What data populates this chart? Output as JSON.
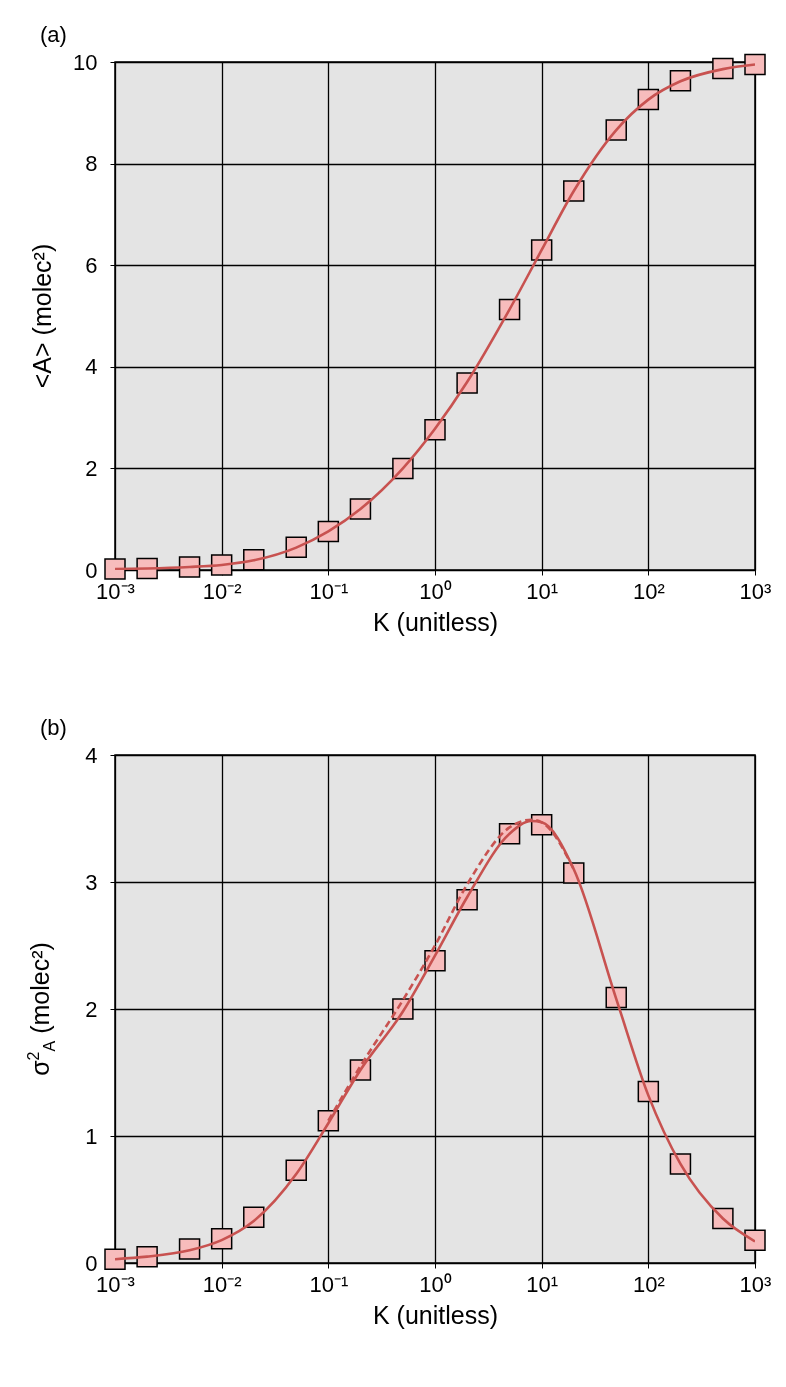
{
  "chart_data": [
    {
      "type": "line",
      "title": "(a)",
      "xlabel": "K (unitless)",
      "ylabel": "<A> (molec²)",
      "log": "x",
      "grid": true,
      "xlim": [
        0.001,
        1000
      ],
      "xticks": [
        {
          "value": 0.001,
          "label": "10⁻³"
        },
        {
          "value": 0.01,
          "label": "10⁻²"
        },
        {
          "value": 0.1,
          "label": "10⁻¹"
        },
        {
          "value": 1,
          "label": "10⁰"
        },
        {
          "value": 10,
          "label": "10¹"
        },
        {
          "value": 100,
          "label": "10²"
        },
        {
          "value": 1000,
          "label": "10³"
        }
      ],
      "ylim": [
        0,
        10
      ],
      "yticks": [
        0,
        2,
        4,
        6,
        8,
        10
      ],
      "series": [
        {
          "type": "line",
          "color": "#c85250",
          "line_style": "solid",
          "x": [
            0.001,
            0.002,
            0.005,
            0.01,
            0.02,
            0.05,
            0.1,
            0.2,
            0.5,
            1,
            2,
            5,
            10,
            20,
            50,
            100,
            200,
            500,
            1000
          ],
          "values": [
            0.02,
            0.03,
            0.06,
            0.1,
            0.19,
            0.44,
            0.76,
            1.2,
            2.0,
            2.78,
            3.7,
            5.13,
            6.3,
            7.46,
            8.66,
            9.26,
            9.62,
            9.86,
            9.95
          ]
        },
        {
          "type": "scatter",
          "marker": "square",
          "color": "#f7bcbc",
          "x": [
            0.001,
            0.002,
            0.005,
            0.01,
            0.02,
            0.05,
            0.1,
            0.2,
            0.5,
            1,
            2,
            5,
            10,
            20,
            50,
            100,
            200,
            500,
            1000
          ],
          "values": [
            0.02,
            0.03,
            0.06,
            0.1,
            0.2,
            0.45,
            0.76,
            1.2,
            2.0,
            2.76,
            3.68,
            5.13,
            6.3,
            7.46,
            8.66,
            9.26,
            9.63,
            9.87,
            9.95
          ]
        }
      ]
    },
    {
      "type": "line",
      "title": "(b)",
      "xlabel": "K (unitless)",
      "ylabel": "σ$^{2}$$_{A}$ (molec²)",
      "log": "x",
      "grid": true,
      "xlim": [
        0.001,
        1000
      ],
      "xticks": [
        {
          "value": 0.001,
          "label": "10⁻³"
        },
        {
          "value": 0.01,
          "label": "10⁻²"
        },
        {
          "value": 0.1,
          "label": "10⁻¹"
        },
        {
          "value": 1,
          "label": "10⁰"
        },
        {
          "value": 10,
          "label": "10¹"
        },
        {
          "value": 100,
          "label": "10²"
        },
        {
          "value": 1000,
          "label": "10³"
        }
      ],
      "ylim": [
        0,
        4
      ],
      "yticks": [
        0,
        1,
        2,
        3,
        4
      ],
      "series": [
        {
          "type": "line",
          "color": "#c85250",
          "line_style": "dashed",
          "x": [
            0.1,
            0.2,
            0.5,
            1,
            2,
            5,
            8,
            10,
            20
          ],
          "values": [
            1.12,
            1.55,
            2.07,
            2.5,
            2.98,
            3.43,
            3.49,
            3.47,
            3.1
          ]
        },
        {
          "type": "line",
          "color": "#c85250",
          "line_style": "solid",
          "x": [
            0.001,
            0.002,
            0.005,
            0.01,
            0.02,
            0.05,
            0.1,
            0.2,
            0.5,
            1,
            2,
            5,
            8,
            10,
            20,
            50,
            100,
            200,
            500,
            1000
          ],
          "values": [
            0.03,
            0.05,
            0.1,
            0.18,
            0.33,
            0.7,
            1.1,
            1.52,
            1.98,
            2.42,
            2.88,
            3.38,
            3.48,
            3.47,
            3.1,
            2.08,
            1.32,
            0.78,
            0.35,
            0.17
          ]
        },
        {
          "type": "scatter",
          "marker": "square",
          "color": "#f7bcbc",
          "x": [
            0.001,
            0.002,
            0.005,
            0.01,
            0.02,
            0.05,
            0.1,
            0.2,
            0.5,
            1,
            2,
            5,
            10,
            20,
            50,
            100,
            200,
            500,
            1000
          ],
          "values": [
            0.03,
            0.05,
            0.11,
            0.19,
            0.36,
            0.73,
            1.12,
            1.52,
            2.0,
            2.38,
            2.86,
            3.38,
            3.45,
            3.07,
            2.09,
            1.35,
            0.78,
            0.35,
            0.18
          ]
        }
      ]
    }
  ]
}
